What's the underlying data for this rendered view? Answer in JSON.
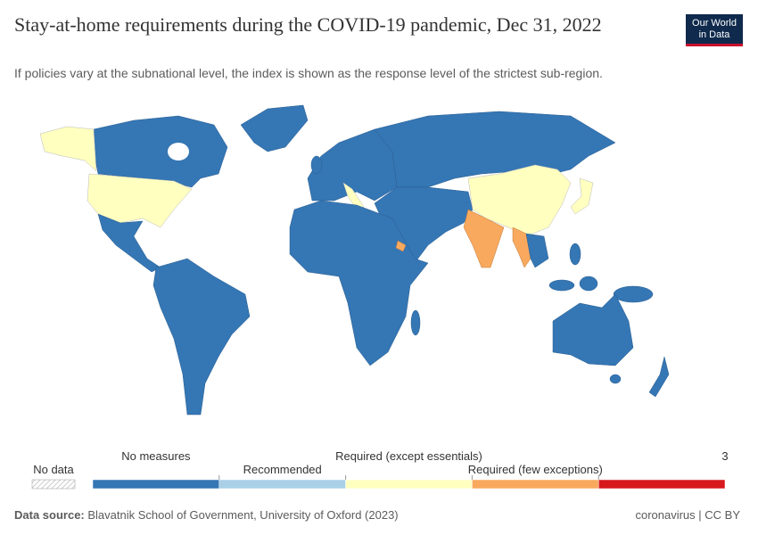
{
  "header": {
    "title": "Stay-at-home requirements during the COVID-19 pandemic, Dec 31, 2022",
    "subtitle": "If policies vary at the subnational level, the index is shown as the response level of the strictest sub-region.",
    "logo": [
      "Our World",
      "in Data"
    ]
  },
  "legend": {
    "no_data": "No data",
    "items": [
      {
        "label": "No measures",
        "color": "#3576b4"
      },
      {
        "label": "Recommended",
        "color": "#a9d0e6"
      },
      {
        "label": "Required (except essentials)",
        "color": "#ffffc0"
      },
      {
        "label": "Required (few exceptions)",
        "color": "#f9a95e"
      },
      {
        "label": null,
        "color": "#d7191c"
      }
    ],
    "end_tick": 3
  },
  "footer": {
    "source_label": "Data source:",
    "source": "Blavatnik School of Government, University of Oxford (2023)",
    "license": "coronavirus | CC BY"
  }
}
